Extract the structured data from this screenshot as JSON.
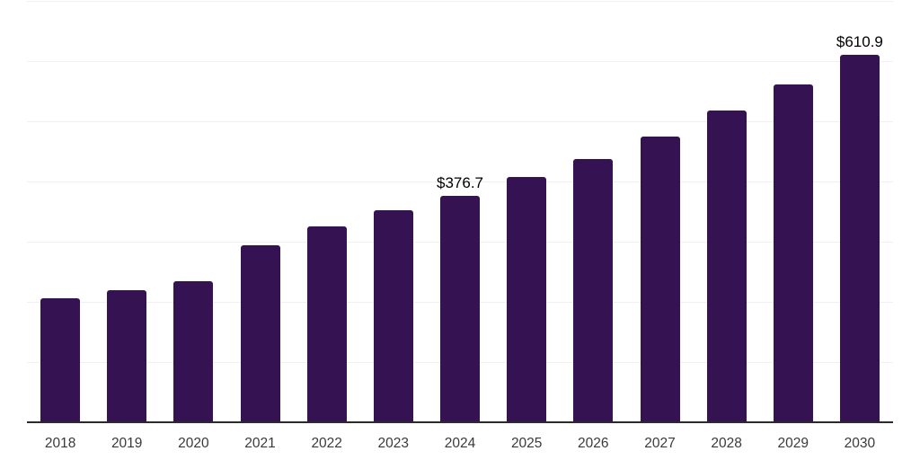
{
  "chart_data": {
    "type": "bar",
    "title": "",
    "xlabel": "",
    "ylabel": "",
    "categories": [
      "2018",
      "2019",
      "2020",
      "2021",
      "2022",
      "2023",
      "2024",
      "2025",
      "2026",
      "2027",
      "2028",
      "2029",
      "2030"
    ],
    "values": [
      205.5,
      219.0,
      234.0,
      293.5,
      326.0,
      352.0,
      376.7,
      407.0,
      438.0,
      474.5,
      517.5,
      561.0,
      610.9
    ],
    "data_labels": [
      "",
      "",
      "",
      "",
      "",
      "",
      "$376.7",
      "",
      "",
      "",
      "",
      "",
      "$610.9"
    ],
    "annotated_points": [
      {
        "category": "2024",
        "label": "$376.7",
        "value": 376.7
      },
      {
        "category": "2030",
        "label": "$610.9",
        "value": 610.9
      }
    ],
    "ylim": [
      0,
      700
    ],
    "gridline_step": 100,
    "grid": "horizontal-only",
    "legend": "none",
    "y_tick_labels_visible": false,
    "colors": {
      "bar": "#351252",
      "axis_line": "#2b2b2b",
      "gridline": "#f0f0f2",
      "tick_label": "#3a3a3a",
      "value_label": "#000000",
      "background": "#ffffff"
    }
  }
}
